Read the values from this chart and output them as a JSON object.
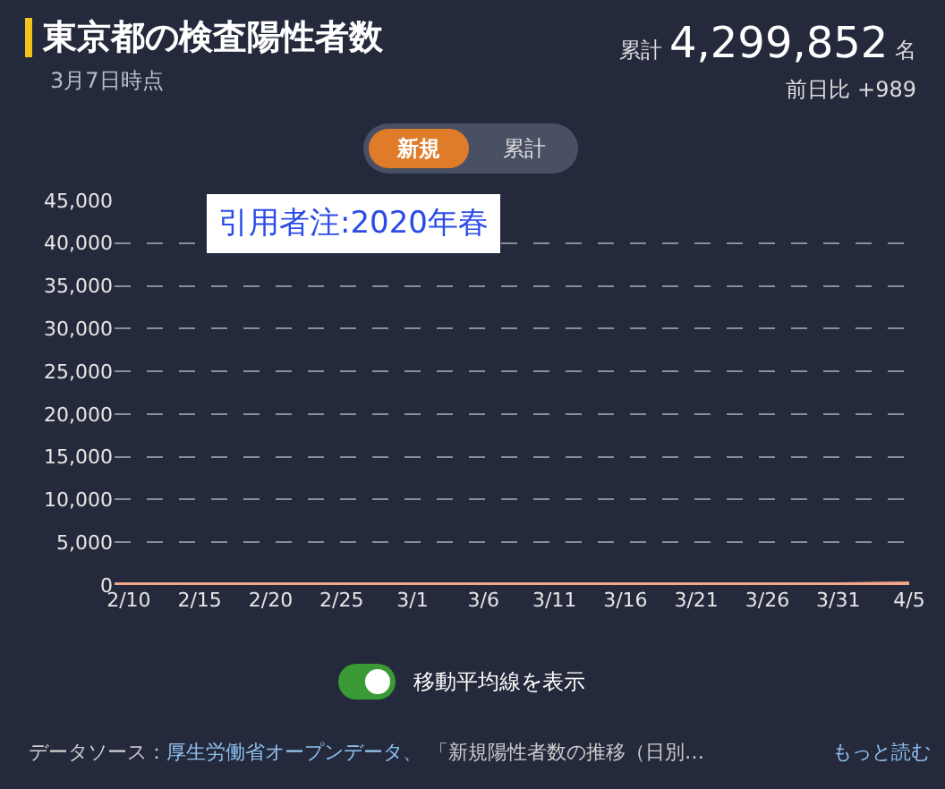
{
  "chart_data": {
    "type": "line",
    "title": "東京都の検査陽性者数",
    "subtitle": "3月7日時点",
    "x": [
      "2020-02-09",
      "2020-02-15",
      "2020-02-20",
      "2020-02-25",
      "2020-03-01",
      "2020-03-06",
      "2020-03-11",
      "2020-03-16",
      "2020-03-21",
      "2020-03-26",
      "2020-03-31",
      "2020-04-05"
    ],
    "series": [
      {
        "color": "#f4a58a",
        "values": [
          0,
          0,
          0,
          0,
          0,
          0,
          0,
          0,
          0,
          0,
          0,
          100
        ]
      }
    ],
    "xlim": [
      "2020-02-09",
      "2020-04-05"
    ],
    "xticks": [
      {
        "value": "2020-02-10",
        "label": "2/10"
      },
      {
        "value": "2020-02-15",
        "label": "2/15"
      },
      {
        "value": "2020-02-20",
        "label": "2/20"
      },
      {
        "value": "2020-02-25",
        "label": "2/25"
      },
      {
        "value": "2020-03-01",
        "label": "3/1"
      },
      {
        "value": "2020-03-06",
        "label": "3/6"
      },
      {
        "value": "2020-03-11",
        "label": "3/11"
      },
      {
        "value": "2020-03-16",
        "label": "3/16"
      },
      {
        "value": "2020-03-21",
        "label": "3/21"
      },
      {
        "value": "2020-03-26",
        "label": "3/26"
      },
      {
        "value": "2020-03-31",
        "label": "3/31"
      },
      {
        "value": "2020-04-05",
        "label": "4/5"
      }
    ],
    "ylim": [
      0,
      45000
    ],
    "yticks": [
      {
        "value": 0,
        "label": "0"
      },
      {
        "value": 5000,
        "label": "5,000"
      },
      {
        "value": 10000,
        "label": "10,000"
      },
      {
        "value": 15000,
        "label": "15,000"
      },
      {
        "value": 20000,
        "label": "20,000"
      },
      {
        "value": 25000,
        "label": "25,000"
      },
      {
        "value": 30000,
        "label": "30,000"
      },
      {
        "value": 35000,
        "label": "35,000"
      },
      {
        "value": 40000,
        "label": "40,000"
      },
      {
        "value": 45000,
        "label": "45,000"
      }
    ],
    "grid": "y",
    "legend": false,
    "marker": "none",
    "line_style": "solid",
    "annotations": [
      "累計",
      "4,299,852",
      "名",
      "前日比 +989",
      "新規",
      "累計",
      "引用者注:2020年春",
      "移動平均線を表示",
      "データソース：",
      "厚生労働省オープンデータ、",
      "「新規陽性者数の推移（日別…",
      "もっと読む"
    ]
  }
}
